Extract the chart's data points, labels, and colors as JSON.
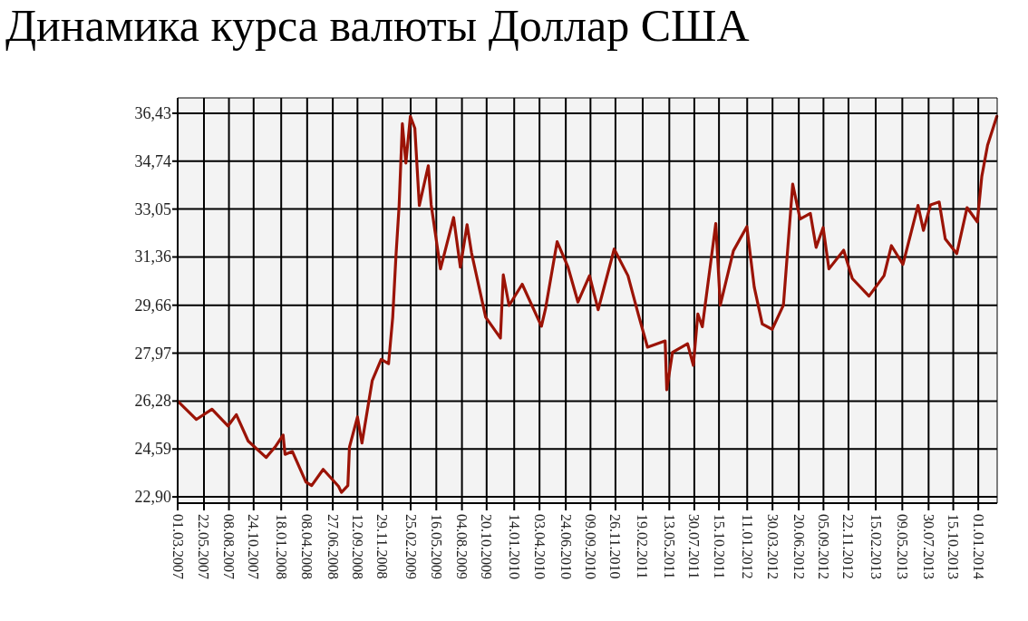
{
  "chart_data": {
    "type": "line",
    "title": "Динамика курса валюты Доллар США",
    "x": [
      "2007-03-01",
      "2007-04-28",
      "2007-06-16",
      "2007-08-05",
      "2007-08-31",
      "2007-10-07",
      "2007-12-02",
      "2007-12-30",
      "2008-01-24",
      "2008-01-30",
      "2008-02-22",
      "2008-04-04",
      "2008-04-22",
      "2008-05-28",
      "2008-07-15",
      "2008-07-24",
      "2008-08-13",
      "2008-08-18",
      "2008-09-12",
      "2008-09-26",
      "2008-10-28",
      "2008-11-25",
      "2008-12-18",
      "2008-12-31",
      "2009-01-10",
      "2009-01-20",
      "2009-01-30",
      "2009-02-10",
      "2009-02-24",
      "2009-03-10",
      "2009-03-24",
      "2009-04-21",
      "2009-04-30",
      "2009-05-29",
      "2009-07-09",
      "2009-07-30",
      "2009-08-20",
      "2009-09-03",
      "2009-10-17",
      "2009-12-02",
      "2009-12-11",
      "2009-12-29",
      "2010-02-08",
      "2010-04-09",
      "2010-04-22",
      "2010-05-28",
      "2010-07-01",
      "2010-08-01",
      "2010-09-06",
      "2010-10-03",
      "2010-11-22",
      "2011-01-04",
      "2011-02-05",
      "2011-03-06",
      "2011-04-30",
      "2011-05-05",
      "2011-05-23",
      "2011-07-09",
      "2011-07-27",
      "2011-08-10",
      "2011-08-24",
      "2011-10-05",
      "2011-10-19",
      "2011-11-29",
      "2012-01-10",
      "2012-02-02",
      "2012-02-27",
      "2012-03-29",
      "2012-05-03",
      "2012-06-01",
      "2012-06-24",
      "2012-07-26",
      "2012-08-13",
      "2012-09-04",
      "2012-09-22",
      "2012-11-07",
      "2012-12-04",
      "2013-01-25",
      "2013-03-13",
      "2013-04-05",
      "2013-05-11",
      "2013-06-27",
      "2013-07-14",
      "2013-08-05",
      "2013-09-01",
      "2013-09-20",
      "2013-10-26",
      "2013-11-27",
      "2013-12-29",
      "2014-01-12",
      "2014-01-30",
      "2014-02-28"
    ],
    "series": [
      {
        "color": "#9b1306",
        "values": [
          26.28,
          25.63,
          25.99,
          25.4,
          25.8,
          24.87,
          24.29,
          24.66,
          25.08,
          24.4,
          24.5,
          23.43,
          23.3,
          23.87,
          23.27,
          23.06,
          23.3,
          24.66,
          25.72,
          24.8,
          27.0,
          27.75,
          27.6,
          29.24,
          31.38,
          33.18,
          36.06,
          34.67,
          36.32,
          35.9,
          33.18,
          34.58,
          33.2,
          30.94,
          32.75,
          31.0,
          32.5,
          31.5,
          29.24,
          28.5,
          30.73,
          29.65,
          30.4,
          28.92,
          29.55,
          31.9,
          31.0,
          29.77,
          30.7,
          29.5,
          31.64,
          30.7,
          29.35,
          28.18,
          28.4,
          26.68,
          28.0,
          28.3,
          27.54,
          29.35,
          28.9,
          32.54,
          29.66,
          31.58,
          32.43,
          30.3,
          29.0,
          28.81,
          29.66,
          33.93,
          32.7,
          32.9,
          31.7,
          32.4,
          30.94,
          31.6,
          30.6,
          29.98,
          30.7,
          31.76,
          31.1,
          33.18,
          32.3,
          33.2,
          33.3,
          32.0,
          31.48,
          33.1,
          32.6,
          34.2,
          35.3,
          36.32
        ]
      }
    ],
    "xlim": [
      "2007-03-01",
      "2014-03-01"
    ],
    "xticks": [
      {
        "value": "2007-03-01",
        "label": "01.03.2007"
      },
      {
        "value": "2007-05-22",
        "label": "22.05.2007"
      },
      {
        "value": "2007-08-08",
        "label": "08.08.2007"
      },
      {
        "value": "2007-10-24",
        "label": "24.10.2007"
      },
      {
        "value": "2008-01-18",
        "label": "18.01.2008"
      },
      {
        "value": "2008-04-08",
        "label": "08.04.2008"
      },
      {
        "value": "2008-06-27",
        "label": "27.06.2008"
      },
      {
        "value": "2008-09-12",
        "label": "12.09.2008"
      },
      {
        "value": "2008-11-29",
        "label": "29.11.2008"
      },
      {
        "value": "2009-02-25",
        "label": "25.02.2009"
      },
      {
        "value": "2009-05-16",
        "label": "16.05.2009"
      },
      {
        "value": "2009-08-04",
        "label": "04.08.2009"
      },
      {
        "value": "2009-10-20",
        "label": "20.10.2009"
      },
      {
        "value": "2010-01-14",
        "label": "14.01.2010"
      },
      {
        "value": "2010-04-03",
        "label": "03.04.2010"
      },
      {
        "value": "2010-06-24",
        "label": "24.06.2010"
      },
      {
        "value": "2010-09-09",
        "label": "09.09.2010"
      },
      {
        "value": "2010-11-26",
        "label": "26.11.2010"
      },
      {
        "value": "2011-02-19",
        "label": "19.02.2011"
      },
      {
        "value": "2011-05-13",
        "label": "13.05.2011"
      },
      {
        "value": "2011-07-30",
        "label": "30.07.2011"
      },
      {
        "value": "2011-10-15",
        "label": "15.10.2011"
      },
      {
        "value": "2012-01-11",
        "label": "11.01.2012"
      },
      {
        "value": "2012-03-30",
        "label": "30.03.2012"
      },
      {
        "value": "2012-06-20",
        "label": "20.06.2012"
      },
      {
        "value": "2012-09-05",
        "label": "05.09.2012"
      },
      {
        "value": "2012-11-22",
        "label": "22.11.2012"
      },
      {
        "value": "2013-02-15",
        "label": "15.02.2013"
      },
      {
        "value": "2013-05-09",
        "label": "09.05.2013"
      },
      {
        "value": "2013-07-30",
        "label": "30.07.2013"
      },
      {
        "value": "2013-10-15",
        "label": "15.10.2013"
      },
      {
        "value": "2014-01-01",
        "label": "01.01.2014"
      }
    ],
    "ylim": [
      22.68,
      36.97
    ],
    "yticks": [
      {
        "value": 22.9,
        "label": "22,90"
      },
      {
        "value": 24.59,
        "label": "24,59"
      },
      {
        "value": 26.28,
        "label": "26,28"
      },
      {
        "value": 27.97,
        "label": "27,97"
      },
      {
        "value": 29.66,
        "label": "29,66"
      },
      {
        "value": 31.36,
        "label": "31,36"
      },
      {
        "value": 33.05,
        "label": "33,05"
      },
      {
        "value": 34.74,
        "label": "34,74"
      },
      {
        "value": 36.43,
        "label": "36,43"
      }
    ],
    "grid": true
  }
}
